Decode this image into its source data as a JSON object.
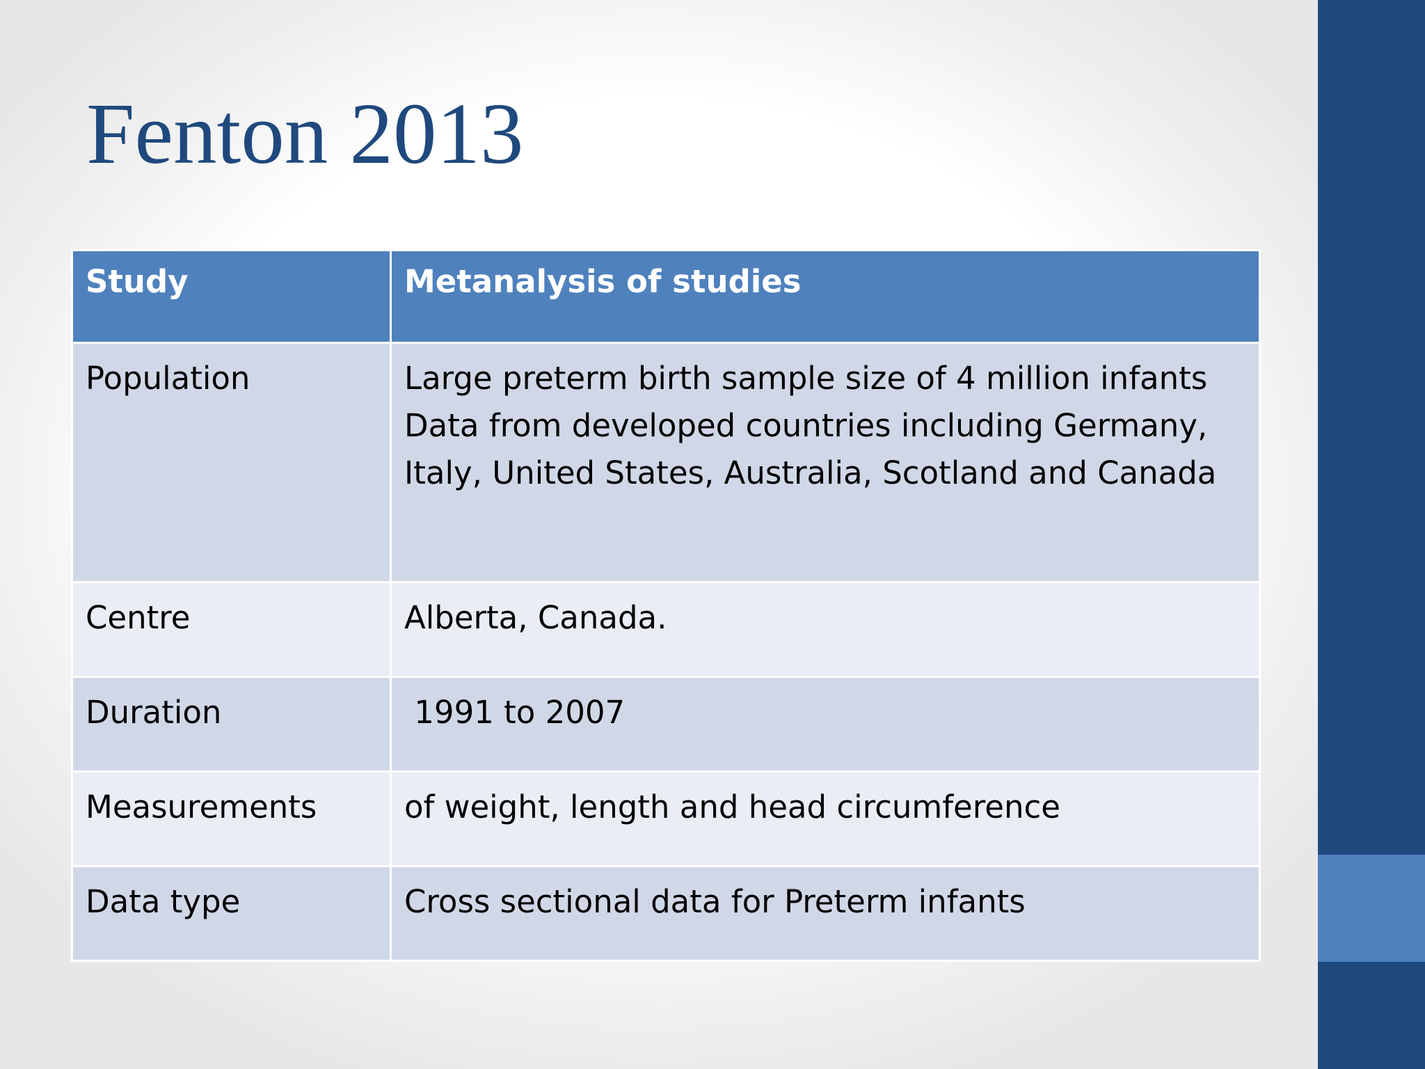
{
  "slide": {
    "title": "Fenton 2013",
    "colors": {
      "title": "#1f497d",
      "side_bar": "#1f497d",
      "side_accent": "#4f81bd",
      "table_header": "#4f81bd",
      "row_band": "#d0d8e8",
      "row_plain": "#e9edf4"
    }
  },
  "table": {
    "header": {
      "label": "Study",
      "value": "Metanalysis of studies"
    },
    "rows": [
      {
        "label": "Population",
        "lines": [
          "Large preterm birth sample size of 4 million infants",
          "Data from developed countries including Germany,",
          "Italy, United States, Australia, Scotland and Canada"
        ]
      },
      {
        "label": "Centre",
        "lines": [
          "Alberta, Canada."
        ]
      },
      {
        "label": "Duration",
        "lines": [
          " 1991 to 2007"
        ]
      },
      {
        "label": "Measurements",
        "lines": [
          "of weight, length and head circumference"
        ]
      },
      {
        "label": "Data type",
        "lines": [
          "Cross sectional data for Preterm infants"
        ]
      }
    ]
  }
}
